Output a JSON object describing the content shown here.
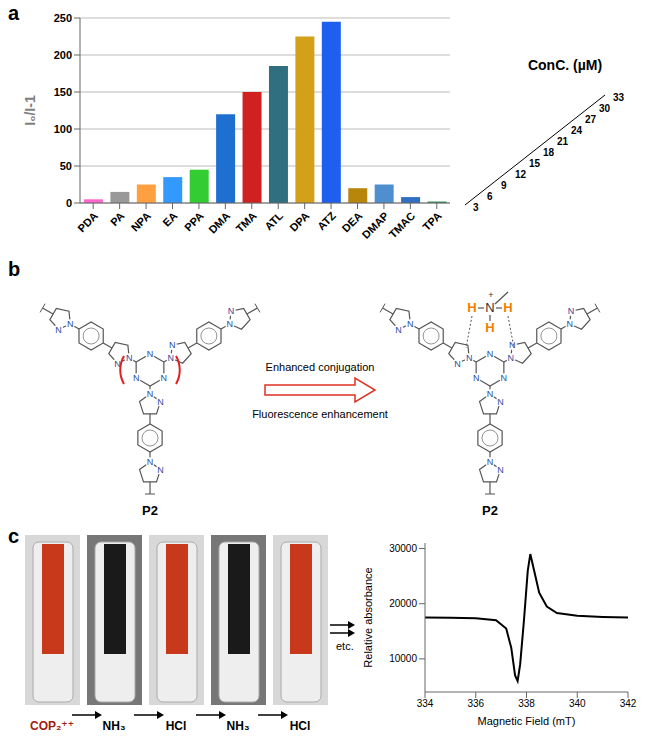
{
  "panel_labels": [
    "a",
    "b",
    "c"
  ],
  "chart_data": [
    {
      "type": "bar",
      "y_label": "I₀/I-1",
      "depth_label": "ConC. (µM)",
      "depth_ticks": [
        3,
        6,
        9,
        12,
        15,
        18,
        21,
        24,
        27,
        30,
        33
      ],
      "categories": [
        "PDA",
        "PA",
        "NPA",
        "EA",
        "PPA",
        "DMA",
        "TMA",
        "ATL",
        "DPA",
        "ATZ",
        "DEA",
        "DMAP",
        "TMAC",
        "TPA"
      ],
      "values": [
        5,
        15,
        25,
        35,
        45,
        120,
        150,
        185,
        225,
        245,
        20,
        25,
        8,
        2
      ],
      "colors": [
        "#ff66cc",
        "#999999",
        "#ffa040",
        "#3399ff",
        "#33cc33",
        "#1f6fd0",
        "#d02020",
        "#2f6f7f",
        "#d4a017",
        "#1e5ff0",
        "#b8860b",
        "#4f8fd0",
        "#3070c0",
        "#2e8b57"
      ],
      "ylim": [
        0,
        250
      ],
      "yticks": [
        0,
        50,
        100,
        150,
        200,
        250
      ],
      "grid": true
    },
    {
      "type": "line",
      "x_label": "Magnetic Field (mT)",
      "y_label": "Relative absorbance",
      "x": [
        334,
        335,
        336,
        336.8,
        337.2,
        337.4,
        337.55,
        337.65,
        337.75,
        337.9,
        338.05,
        338.15,
        338.3,
        338.5,
        338.8,
        339.2,
        340,
        341,
        342
      ],
      "values": [
        17500,
        17450,
        17350,
        17000,
        15500,
        12000,
        7000,
        6000,
        9000,
        17000,
        26000,
        29000,
        26000,
        22000,
        19500,
        18300,
        17800,
        17600,
        17500
      ],
      "color": "#000000",
      "xlim": [
        334,
        342
      ],
      "xticks": [
        334,
        336,
        338,
        340,
        342
      ],
      "ylim": [
        4000,
        31000
      ],
      "yticks": [
        10000,
        20000,
        30000
      ],
      "grid": false
    }
  ],
  "diagram": {
    "structures": [
      {
        "label": "P2",
        "protonated": false
      },
      {
        "label": "P2",
        "protonated": true
      }
    ],
    "arrow_texts": [
      "Enhanced conjugation",
      "Fluorescence enhancement"
    ],
    "atoms": {
      "nitrogen": "N",
      "hydrogen": "H",
      "charge": "+"
    },
    "highlight_color": "#e02020",
    "hydrogen_color": "#f08000"
  },
  "photos": {
    "vials": [
      {
        "label": "COP₂⁺⁺",
        "color": "#c8381a"
      },
      {
        "label": "NH₃",
        "color": "#1a1a1a"
      },
      {
        "label": "HCl",
        "color": "#c8381a"
      },
      {
        "label": "NH₃",
        "color": "#1a1a1a"
      },
      {
        "label": "HCl",
        "color": "#c8381a"
      }
    ],
    "continuation": "etc."
  }
}
